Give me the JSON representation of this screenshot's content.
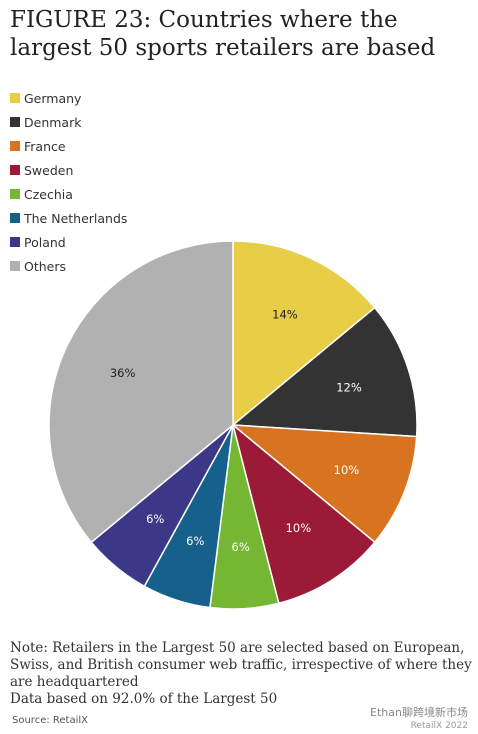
{
  "title": "FIGURE 23: Countries where the largest 50 sports retailers are based",
  "note_lines": [
    "Note: Retailers in the Largest 50 are selected based on European, Swiss, and British consumer web traffic, irrespective of where they are headquartered",
    "Data based on 92.0% of the Largest 50"
  ],
  "source": "Source: RetailX",
  "watermark": {
    "text": "Ethan聊跨境新市场",
    "credit": "RetailX 2022"
  },
  "chart_data": {
    "type": "pie",
    "title": "FIGURE 23: Countries where the largest 50 sports retailers are based",
    "legend_position": "top-left",
    "slices": [
      {
        "label": "Germany",
        "value": 14,
        "display": "14%",
        "color": "#E8CD47"
      },
      {
        "label": "Denmark",
        "value": 12,
        "display": "12%",
        "color": "#333333"
      },
      {
        "label": "France",
        "value": 10,
        "display": "10%",
        "color": "#D8741F"
      },
      {
        "label": "Sweden",
        "value": 10,
        "display": "10%",
        "color": "#9B1A38"
      },
      {
        "label": "Czechia",
        "value": 6,
        "display": "6%",
        "color": "#75B733"
      },
      {
        "label": "The Netherlands",
        "value": 6,
        "display": "6%",
        "color": "#16608C"
      },
      {
        "label": "Poland",
        "value": 6,
        "display": "6%",
        "color": "#3B3888"
      },
      {
        "label": "Others",
        "value": 36,
        "display": "36%",
        "color": "#B1B1B1"
      }
    ]
  }
}
